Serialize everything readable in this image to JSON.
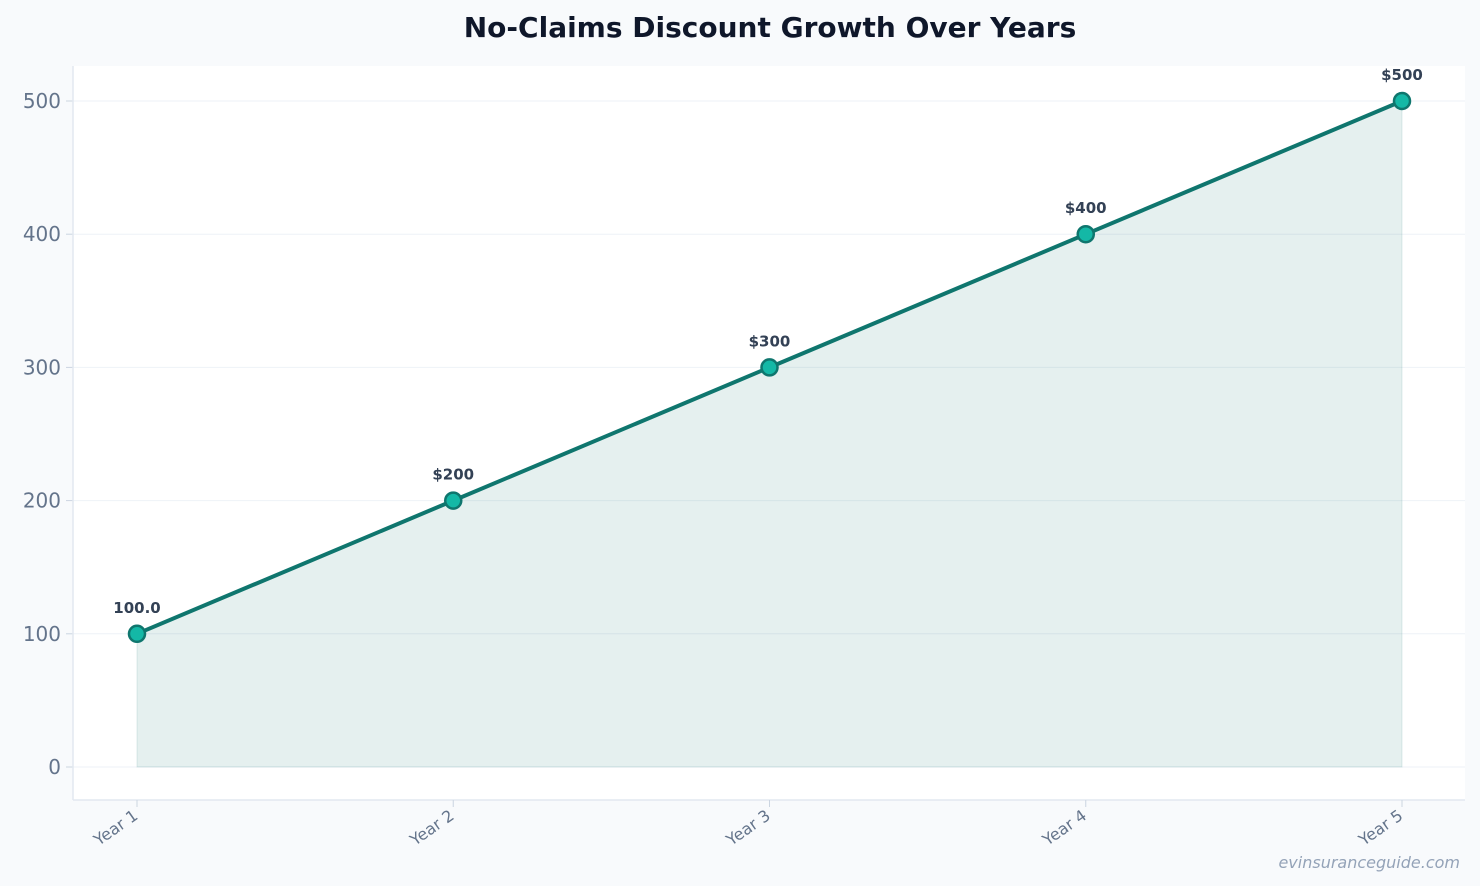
{
  "chart_data": {
    "type": "line",
    "title": "No-Claims Discount Growth Over Years",
    "xlabel": "",
    "ylabel": "",
    "categories": [
      "Year 1",
      "Year 2",
      "Year 3",
      "Year 4",
      "Year 5"
    ],
    "series": [
      {
        "values": [
          100,
          200,
          300,
          400,
          500
        ],
        "data_labels": [
          "100.0",
          "$200",
          "$300",
          "$400",
          "$500"
        ]
      }
    ],
    "ylim": [
      0,
      525
    ],
    "yticks": [
      0,
      100,
      200,
      300,
      400,
      500
    ],
    "area_fill": true,
    "markers": true,
    "grid": "horizontal",
    "legend": "none",
    "colors": {
      "line": "#0f766e",
      "marker_fill": "#14b8a6",
      "marker_edge": "#0f766e",
      "area": "#0f766e",
      "grid": "#eef2f7",
      "axis": "#e2e8f0",
      "plot_bg": "#ffffff",
      "page_bg": "#f8fafc"
    }
  },
  "watermark": "evinsuranceguide.com"
}
